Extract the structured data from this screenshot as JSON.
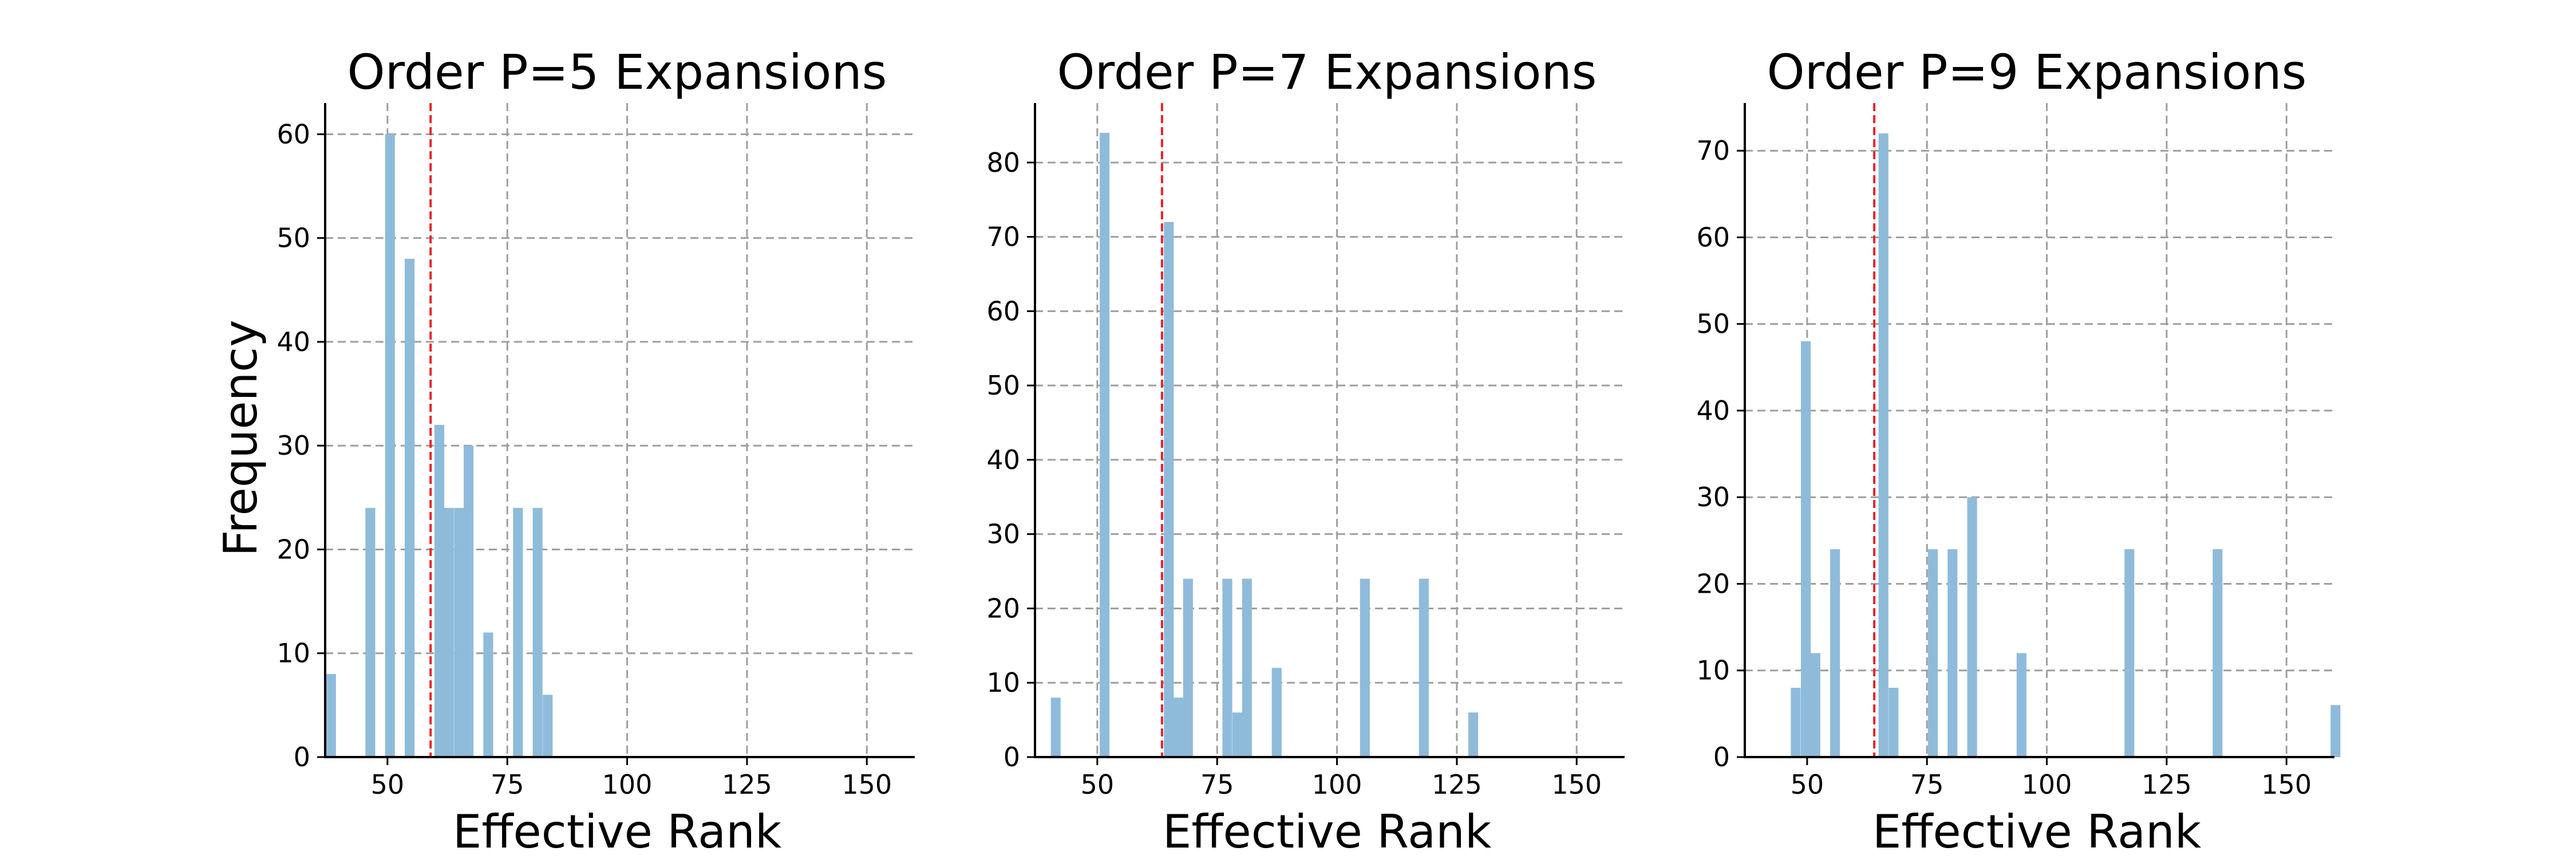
{
  "chart_data": [
    {
      "type": "bar",
      "title": "Order P=5 Expansions",
      "xlabel": "Effective Rank",
      "ylabel": "Frequency",
      "xlim": [
        37,
        160
      ],
      "ylim": [
        0,
        63
      ],
      "xticks": [
        50,
        75,
        100,
        125,
        150
      ],
      "yticks": [
        0,
        10,
        20,
        30,
        40,
        50,
        60
      ],
      "bin_width": 2.05,
      "grid": true,
      "bar_color": "#8fbbdb",
      "mean_line_color": "#e8232a",
      "mean_line_x": 59,
      "x": [
        37.2,
        45.4,
        49.5,
        53.6,
        59.8,
        61.8,
        63.9,
        65.9,
        70.0,
        76.2,
        80.3,
        82.4
      ],
      "values": [
        8,
        24,
        60,
        48,
        32,
        24,
        24,
        30,
        12,
        24,
        24,
        6
      ]
    },
    {
      "type": "bar",
      "title": "Order P=7 Expansions",
      "xlabel": "Effective Rank",
      "ylabel": "",
      "xlim": [
        37,
        160
      ],
      "ylim": [
        0,
        88
      ],
      "xticks": [
        50,
        75,
        100,
        125,
        150
      ],
      "yticks": [
        0,
        10,
        20,
        30,
        40,
        50,
        60,
        70,
        80
      ],
      "bin_width": 2.05,
      "grid": true,
      "bar_color": "#8fbbdb",
      "mean_line_color": "#e8232a",
      "mean_line_x": 63.5,
      "x": [
        40.3,
        50.5,
        63.9,
        65.9,
        67.9,
        76.1,
        78.2,
        80.2,
        86.4,
        104.8,
        117.1,
        127.4
      ],
      "values": [
        8,
        84,
        72,
        8,
        24,
        24,
        6,
        24,
        12,
        24,
        24,
        6
      ]
    },
    {
      "type": "bar",
      "title": "Order P=9 Expansions",
      "xlabel": "Effective Rank",
      "ylabel": "",
      "xlim": [
        37,
        160
      ],
      "ylim": [
        0,
        75.5
      ],
      "xticks": [
        50,
        75,
        100,
        125,
        150
      ],
      "yticks": [
        0,
        10,
        20,
        30,
        40,
        50,
        60,
        70
      ],
      "bin_width": 2.05,
      "grid": true,
      "bar_color": "#8fbbdb",
      "mean_line_color": "#e8232a",
      "mean_line_x": 64,
      "x": [
        46.6,
        48.7,
        50.7,
        54.8,
        64.9,
        67.0,
        75.2,
        79.3,
        83.4,
        93.7,
        116.2,
        134.6,
        159.2
      ],
      "values": [
        8,
        48,
        12,
        24,
        72,
        8,
        24,
        24,
        30,
        12,
        24,
        24,
        6
      ]
    }
  ]
}
